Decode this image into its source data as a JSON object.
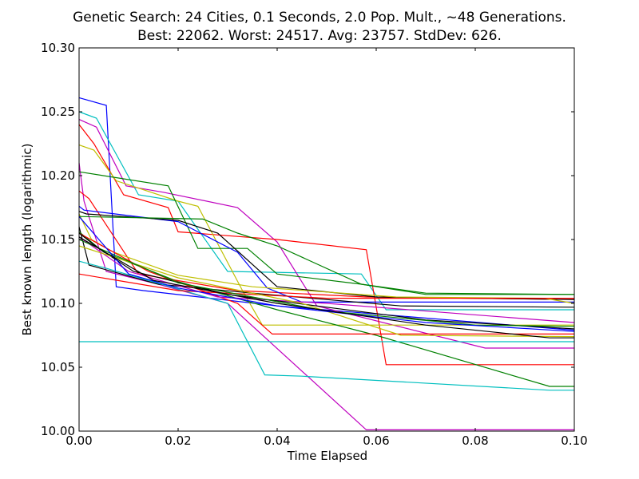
{
  "chart_data": {
    "type": "line",
    "title": [
      "Genetic Search: 24 Cities, 0.1 Seconds, 2.0 Pop. Mult., ~48 Generations.",
      "Best: 22062. Worst: 24517. Avg: 23757. StdDev: 626."
    ],
    "xlabel": "Time Elapsed",
    "ylabel": "Best known length (logarithmic)",
    "xlim": [
      0.0,
      0.1
    ],
    "ylim": [
      10.0,
      10.3
    ],
    "xticks": [
      "0.00",
      "0.02",
      "0.04",
      "0.06",
      "0.08",
      "0.10"
    ],
    "xtick_values": [
      0.0,
      0.02,
      0.04,
      0.06,
      0.08,
      0.1
    ],
    "yticks": [
      "10.00",
      "10.05",
      "10.10",
      "10.15",
      "10.20",
      "10.25",
      "10.30"
    ],
    "ytick_values": [
      10.0,
      10.05,
      10.1,
      10.15,
      10.2,
      10.25,
      10.3
    ],
    "grid": false,
    "legend": "none",
    "series": [
      {
        "color": "#0000ff",
        "points": [
          [
            0.0,
            10.261
          ],
          [
            0.0055,
            10.255
          ],
          [
            0.0075,
            10.113
          ],
          [
            0.013,
            10.11
          ],
          [
            0.04,
            10.098
          ],
          [
            0.1,
            10.079
          ]
        ]
      },
      {
        "color": "#00bfbf",
        "points": [
          [
            0.0,
            10.25
          ],
          [
            0.0035,
            10.245
          ],
          [
            0.012,
            10.185
          ],
          [
            0.02,
            10.18
          ],
          [
            0.03,
            10.125
          ],
          [
            0.057,
            10.123
          ],
          [
            0.062,
            10.095
          ],
          [
            0.1,
            10.095
          ]
        ]
      },
      {
        "color": "#bf00bf",
        "points": [
          [
            0.0,
            10.244
          ],
          [
            0.0035,
            10.238
          ],
          [
            0.0095,
            10.192
          ],
          [
            0.017,
            10.187
          ],
          [
            0.032,
            10.175
          ],
          [
            0.04,
            10.148
          ],
          [
            0.048,
            10.098
          ],
          [
            0.082,
            10.065
          ],
          [
            0.1,
            10.065
          ]
        ]
      },
      {
        "color": "#ff0000",
        "points": [
          [
            0.0,
            10.24
          ],
          [
            0.003,
            10.225
          ],
          [
            0.009,
            10.185
          ],
          [
            0.018,
            10.175
          ],
          [
            0.02,
            10.156
          ],
          [
            0.04,
            10.15
          ],
          [
            0.058,
            10.142
          ],
          [
            0.062,
            10.052
          ],
          [
            0.1,
            10.052
          ]
        ]
      },
      {
        "color": "#bfbf00",
        "points": [
          [
            0.0,
            10.224
          ],
          [
            0.003,
            10.22
          ],
          [
            0.0075,
            10.196
          ],
          [
            0.02,
            10.18
          ],
          [
            0.024,
            10.176
          ],
          [
            0.033,
            10.11
          ],
          [
            0.037,
            10.083
          ],
          [
            0.059,
            10.083
          ],
          [
            0.1,
            10.083
          ]
        ]
      },
      {
        "color": "#bf00bf",
        "points": [
          [
            0.0,
            10.21
          ],
          [
            0.001,
            10.18
          ],
          [
            0.0055,
            10.125
          ],
          [
            0.016,
            10.115
          ],
          [
            0.03,
            10.1
          ],
          [
            0.058,
            10.001
          ],
          [
            0.1,
            10.001
          ]
        ]
      },
      {
        "color": "#008000",
        "points": [
          [
            0.0,
            10.203
          ],
          [
            0.018,
            10.192
          ],
          [
            0.024,
            10.143
          ],
          [
            0.034,
            10.143
          ],
          [
            0.04,
            10.123
          ],
          [
            0.057,
            10.115
          ],
          [
            0.07,
            10.107
          ],
          [
            0.1,
            10.107
          ]
        ]
      },
      {
        "color": "#ff0000",
        "points": [
          [
            0.0,
            10.188
          ],
          [
            0.002,
            10.182
          ],
          [
            0.012,
            10.123
          ],
          [
            0.032,
            10.11
          ],
          [
            0.058,
            10.105
          ],
          [
            0.1,
            10.103
          ]
        ]
      },
      {
        "color": "#0000ff",
        "points": [
          [
            0.0,
            10.176
          ],
          [
            0.001,
            10.173
          ],
          [
            0.02,
            10.164
          ],
          [
            0.032,
            10.14
          ],
          [
            0.038,
            10.112
          ],
          [
            0.045,
            10.101
          ],
          [
            0.1,
            10.101
          ]
        ]
      },
      {
        "color": "#000000",
        "points": [
          [
            0.0,
            10.172
          ],
          [
            0.0015,
            10.17
          ],
          [
            0.02,
            10.165
          ],
          [
            0.028,
            10.155
          ],
          [
            0.04,
            10.113
          ],
          [
            0.06,
            10.105
          ],
          [
            0.1,
            10.103
          ]
        ]
      },
      {
        "color": "#bfbf00",
        "points": [
          [
            0.0,
            10.17
          ],
          [
            0.0025,
            10.15
          ],
          [
            0.007,
            10.14
          ],
          [
            0.02,
            10.122
          ],
          [
            0.035,
            10.113
          ],
          [
            0.064,
            10.105
          ],
          [
            0.094,
            10.104
          ],
          [
            0.1,
            10.1
          ]
        ]
      },
      {
        "color": "#008000",
        "points": [
          [
            0.0,
            10.168
          ],
          [
            0.025,
            10.166
          ],
          [
            0.032,
            10.155
          ],
          [
            0.04,
            10.145
          ],
          [
            0.057,
            10.115
          ],
          [
            0.07,
            10.108
          ],
          [
            0.1,
            10.107
          ]
        ]
      },
      {
        "color": "#000000",
        "points": [
          [
            0.0,
            10.16
          ],
          [
            0.002,
            10.13
          ],
          [
            0.016,
            10.115
          ],
          [
            0.035,
            10.108
          ],
          [
            0.065,
            10.098
          ],
          [
            0.1,
            10.097
          ]
        ]
      },
      {
        "color": "#008000",
        "points": [
          [
            0.0,
            10.156
          ],
          [
            0.005,
            10.14
          ],
          [
            0.02,
            10.117
          ],
          [
            0.04,
            10.095
          ],
          [
            0.06,
            10.075
          ],
          [
            0.095,
            10.035
          ],
          [
            0.1,
            10.035
          ]
        ]
      },
      {
        "color": "#ff0000",
        "points": [
          [
            0.0,
            10.155
          ],
          [
            0.014,
            10.125
          ],
          [
            0.032,
            10.1
          ],
          [
            0.039,
            10.076
          ],
          [
            0.1,
            10.076
          ]
        ]
      },
      {
        "color": "#bf00bf",
        "points": [
          [
            0.0,
            10.152
          ],
          [
            0.01,
            10.125
          ],
          [
            0.028,
            10.105
          ],
          [
            0.05,
            10.1
          ],
          [
            0.1,
            10.085
          ]
        ]
      },
      {
        "color": "#00bfbf",
        "points": [
          [
            0.0,
            10.133
          ],
          [
            0.005,
            10.128
          ],
          [
            0.03,
            10.1
          ],
          [
            0.0375,
            10.044
          ],
          [
            0.045,
            10.043
          ],
          [
            0.095,
            10.032
          ],
          [
            0.1,
            10.032
          ]
        ]
      },
      {
        "color": "#000000",
        "points": [
          [
            0.0,
            10.155
          ],
          [
            0.004,
            10.143
          ],
          [
            0.011,
            10.125
          ],
          [
            0.03,
            10.107
          ],
          [
            0.05,
            10.097
          ],
          [
            0.07,
            10.087
          ],
          [
            0.1,
            10.08
          ]
        ]
      },
      {
        "color": "#ff0000",
        "points": [
          [
            0.0,
            10.123
          ],
          [
            0.02,
            10.11
          ],
          [
            0.05,
            10.104
          ],
          [
            0.1,
            10.104
          ]
        ]
      },
      {
        "color": "#bfbf00",
        "points": [
          [
            0.0,
            10.145
          ],
          [
            0.02,
            10.12
          ],
          [
            0.045,
            10.1
          ],
          [
            0.065,
            10.075
          ],
          [
            0.1,
            10.074
          ]
        ]
      },
      {
        "color": "#008000",
        "points": [
          [
            0.0,
            10.15
          ],
          [
            0.02,
            10.116
          ],
          [
            0.05,
            10.094
          ],
          [
            0.08,
            10.083
          ],
          [
            0.1,
            10.082
          ]
        ]
      },
      {
        "color": "#0000ff",
        "points": [
          [
            0.0,
            10.168
          ],
          [
            0.01,
            10.123
          ],
          [
            0.02,
            10.112
          ],
          [
            0.04,
            10.098
          ],
          [
            0.07,
            10.085
          ],
          [
            0.1,
            10.078
          ]
        ]
      },
      {
        "color": "#00bfbf",
        "points": [
          [
            0.0,
            10.07
          ],
          [
            0.1,
            10.07
          ]
        ]
      },
      {
        "color": "#000000",
        "points": [
          [
            0.0,
            10.152
          ],
          [
            0.015,
            10.118
          ],
          [
            0.04,
            10.1
          ],
          [
            0.07,
            10.083
          ],
          [
            0.095,
            10.073
          ],
          [
            0.1,
            10.073
          ]
        ]
      }
    ]
  }
}
